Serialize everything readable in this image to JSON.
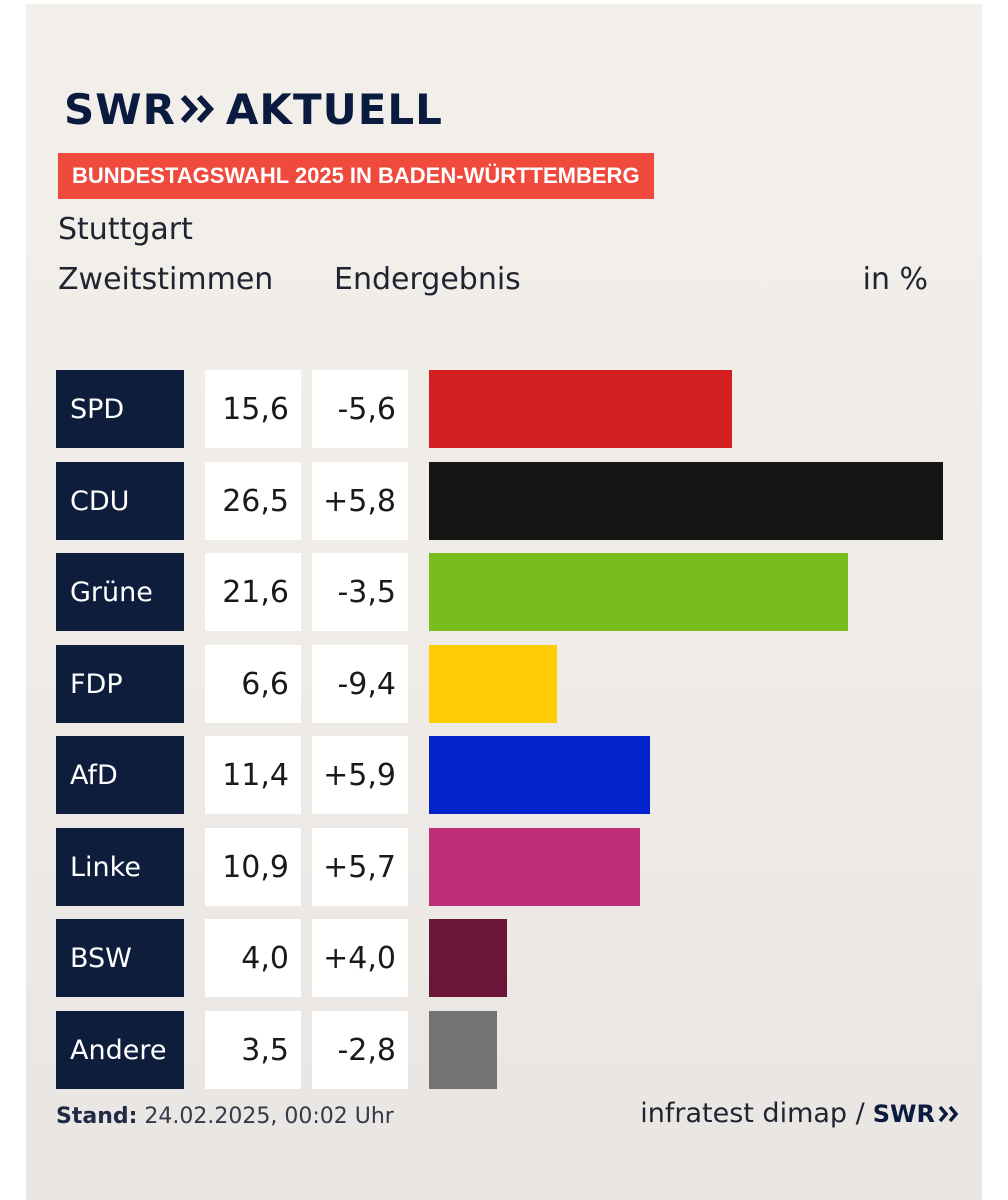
{
  "header": {
    "logo_left": "SWR",
    "logo_right": "AKTUELL",
    "banner": "BUNDESTAGSWAHL 2025 IN BADEN-WÜRTTEMBERG",
    "place": "Stuttgart",
    "subhead_left": "Zweitstimmen",
    "subhead_right": "Endergebnis",
    "unit": "in %"
  },
  "chart_data": {
    "type": "bar",
    "orientation": "horizontal",
    "title": "Stuttgart",
    "categories": [
      "SPD",
      "CDU",
      "Grüne",
      "FDP",
      "AfD",
      "Linke",
      "BSW",
      "Andere"
    ],
    "values": [
      15.6,
      26.5,
      21.6,
      6.6,
      11.4,
      10.9,
      4.0,
      3.5
    ],
    "value_labels": [
      "15,6",
      "26,5",
      "21,6",
      "6,6",
      "11,4",
      "10,9",
      "4,0",
      "3,5"
    ],
    "change_labels": [
      "-5,6",
      "+5,8",
      "-3,5",
      "-9,4",
      "+5,9",
      "+5,7",
      "+4,0",
      "-2,8"
    ],
    "colors": [
      "#d42020",
      "#151515",
      "#78bd1e",
      "#ffcc05",
      "#0322cc",
      "#bf2f78",
      "#6b1538",
      "#737373"
    ],
    "xlim": [
      0,
      26.5
    ],
    "grid": false,
    "legend": "none"
  },
  "footer": {
    "stand_label": "Stand:",
    "stand_value": " 24.02.2025, 00:02 Uhr",
    "source": "infratest dimap /",
    "source_logo": "SWR"
  },
  "colors": {
    "navy": "#0f1d3d",
    "banner": "#f04a3c"
  }
}
